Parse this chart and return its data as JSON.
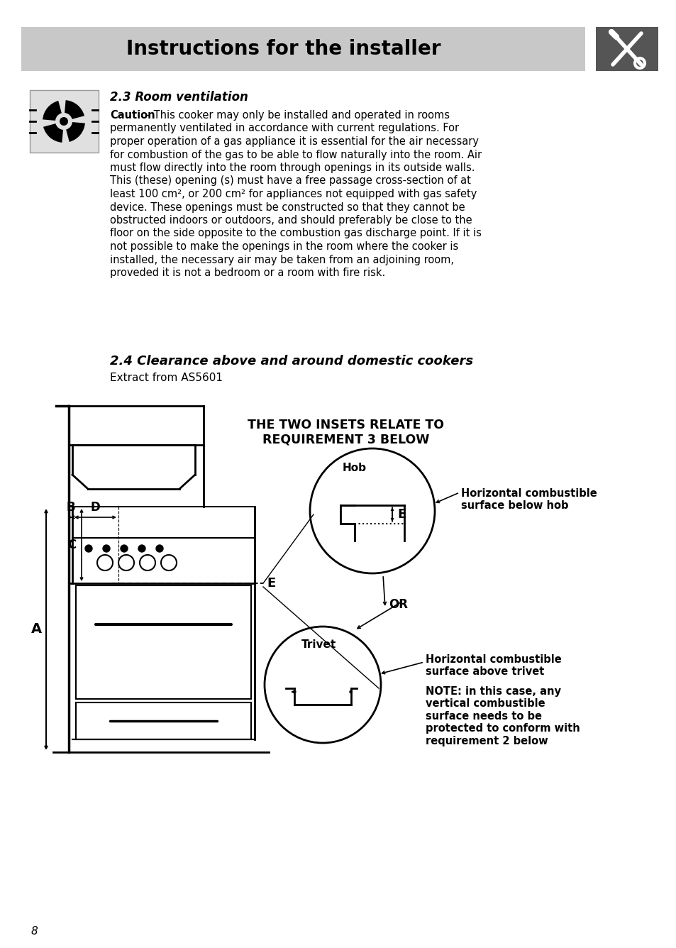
{
  "title": "Instructions for the installer",
  "header_bg": "#c8c8c8",
  "icon_bg": "#555555",
  "page_bg": "#ffffff",
  "section_23_title": "2.3 Room ventilation",
  "caution_word": "Caution",
  "section_23_body": "This cooker may only be installed and operated in rooms permanently ventilated in accordance with current regulations. For proper operation of a gas appliance it is essential for the air necessary for combustion of the gas to be able to flow naturally into the room. Air must flow directly into the room through openings in its outside walls. This (these) opening (s) must have a free passage cross-section of at least 100 cm², or 200 cm² for appliances not equipped with gas safety device. These openings must be constructed so that they cannot be obstructed indoors or outdoors, and should preferably be close to the floor on the side opposite to the combustion gas discharge point. If it is not possible to make the openings in the room where the cooker is installed, the necessary air may be taken from an adjoining room, proveded it is not a bedroom or a room with fire risk.",
  "section_24_title": "2.4 Clearance above and around domestic cookers",
  "section_24_sub": "Extract from AS5601",
  "diagram_header": "THE TWO INSETS RELATE TO\nREQUIREMENT 3 BELOW",
  "hob_label": "Hob",
  "trivet_label": "Trivet",
  "label_A": "A",
  "label_B": "B",
  "label_C": "C",
  "label_D": "D",
  "label_E": "E",
  "label_OR": "OR",
  "hob_annotation": "Horizontal combustible\nsurface below hob",
  "trivet_annotation1": "Horizontal combustible\nsurface above trivet",
  "trivet_annotation2": "NOTE: in this case, any\nvertical combustible\nsurface needs to be\nprotected to conform with\nrequirement 2 below",
  "page_number": "8"
}
